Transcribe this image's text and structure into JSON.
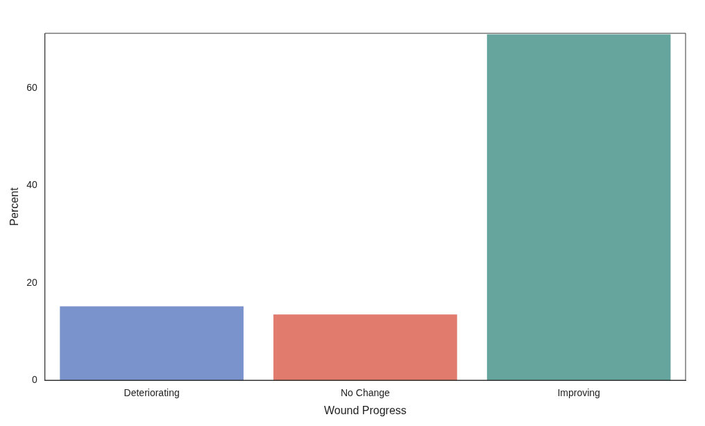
{
  "chart_data": {
    "type": "bar",
    "xlabel": "Wound Progress",
    "ylabel": "Percent",
    "categories": [
      "Deteriorating",
      "No Change",
      "Improving"
    ],
    "values": [
      15.2,
      13.5,
      71.1
    ],
    "colors": [
      "#7b93cc",
      "#e07b6d",
      "#66a59e"
    ],
    "ylim": [
      0,
      71.3
    ],
    "yticks": [
      0,
      20,
      40,
      60
    ],
    "grid": false,
    "legend": false
  }
}
